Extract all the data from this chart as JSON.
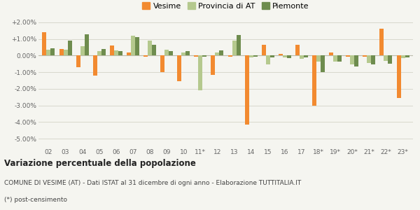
{
  "categories": [
    "02",
    "03",
    "04",
    "05",
    "06",
    "07",
    "08",
    "09",
    "10",
    "11*",
    "12",
    "13",
    "14",
    "15",
    "16",
    "17",
    "18*",
    "19*",
    "20*",
    "21*",
    "22*",
    "23*"
  ],
  "vesime": [
    1.4,
    0.4,
    -0.7,
    -1.2,
    0.6,
    0.2,
    -0.05,
    -1.0,
    -1.55,
    -0.05,
    -1.15,
    -0.05,
    -4.15,
    0.65,
    0.1,
    0.65,
    -3.0,
    0.2,
    -0.05,
    -0.05,
    1.6,
    -2.55
  ],
  "provincia": [
    0.35,
    0.35,
    0.55,
    0.25,
    0.3,
    1.2,
    0.9,
    0.35,
    0.2,
    -2.1,
    0.2,
    0.9,
    -0.1,
    -0.55,
    -0.1,
    -0.2,
    -0.35,
    -0.35,
    -0.55,
    -0.45,
    -0.3,
    -0.15
  ],
  "piemonte": [
    0.45,
    0.9,
    1.3,
    0.4,
    0.25,
    1.1,
    0.65,
    0.25,
    0.25,
    -0.05,
    0.3,
    1.25,
    -0.05,
    -0.1,
    -0.15,
    -0.1,
    -1.0,
    -0.35,
    -0.65,
    -0.55,
    -0.5,
    -0.1
  ],
  "vesime_color": "#f28a30",
  "provincia_color": "#b5c98e",
  "piemonte_color": "#6e8c4e",
  "bg_color": "#f5f5f0",
  "grid_color": "#d8d8cc",
  "ylim": [
    -5.5,
    2.5
  ],
  "yticks": [
    -5.0,
    -4.0,
    -3.0,
    -2.0,
    -1.0,
    0.0,
    1.0,
    2.0
  ],
  "ytick_labels": [
    "-5.00%",
    "-4.00%",
    "-3.00%",
    "-2.00%",
    "-1.00%",
    "0.00%",
    "+1.00%",
    "+2.00%"
  ],
  "title_main": "Variazione percentuale della popolazione",
  "title_sub": "COMUNE DI VESIME (AT) - Dati ISTAT al 31 dicembre di ogni anno - Elaborazione TUTTITALIA.IT",
  "title_sub2": "(*) post-censimento",
  "legend_labels": [
    "Vesime",
    "Provincia di AT",
    "Piemonte"
  ]
}
